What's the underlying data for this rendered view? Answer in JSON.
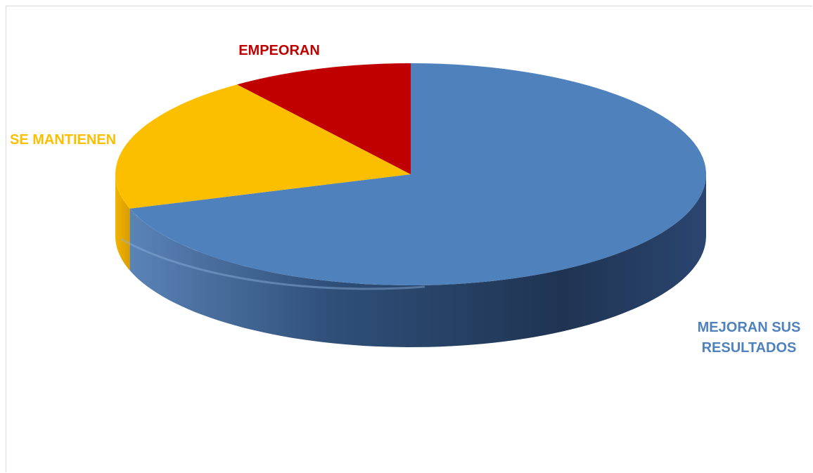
{
  "chart_data": {
    "type": "pie",
    "style": "3d",
    "slices": [
      {
        "label": "MEJORAN SUS RESULTADOS",
        "label_lines": [
          "MEJORAN SUS",
          "RESULTADOS"
        ],
        "value": 70,
        "color": "#4f81bd"
      },
      {
        "label": "SE MANTIENEN",
        "label_lines": [
          "SE MANTIENEN"
        ],
        "value": 20,
        "color": "#fbbf00"
      },
      {
        "label": "EMPEORAN",
        "label_lines": [
          "EMPEORAN"
        ],
        "value": 10,
        "color": "#c00000"
      }
    ],
    "legend": "none"
  }
}
